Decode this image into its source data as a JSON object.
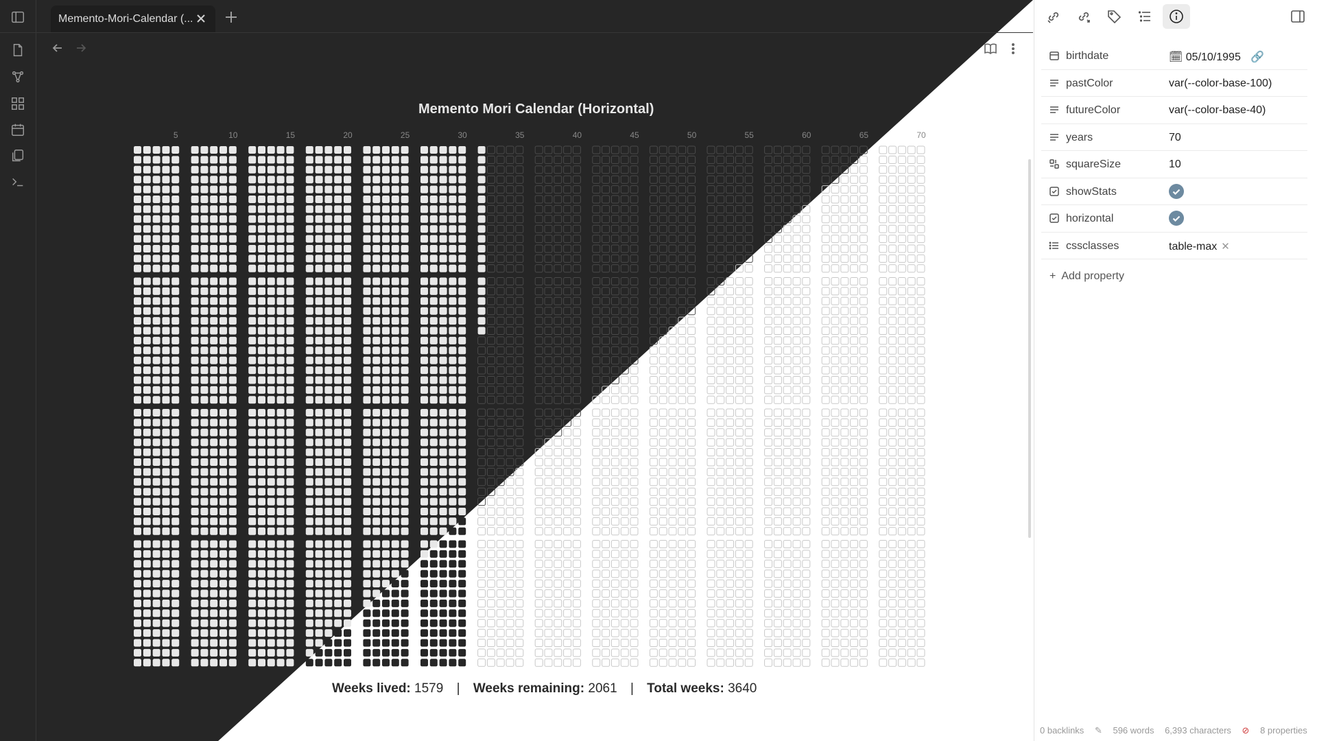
{
  "tab": {
    "title": "Memento-Mori-Calendar (..."
  },
  "calendar": {
    "title": "Memento Mori Calendar (Horizontal)",
    "year_labels": [
      "5",
      "10",
      "15",
      "20",
      "25",
      "30",
      "35",
      "40",
      "45",
      "50",
      "55",
      "60",
      "65",
      "70"
    ],
    "years": 70,
    "weeks_per_year": 52,
    "weeks_lived": 1579,
    "past_color": "#e8e8e8",
    "future_color": "#262626"
  },
  "stats": {
    "lived_label": "Weeks lived:",
    "lived_value": "1579",
    "remaining_label": "Weeks remaining:",
    "remaining_value": "2061",
    "total_label": "Total weeks:",
    "total_value": "3640",
    "separator": "|"
  },
  "properties": [
    {
      "icon": "calendar-icon",
      "key": "birthdate",
      "value": "05/10/1995",
      "type": "date"
    },
    {
      "icon": "text-lines-icon",
      "key": "pastColor",
      "value": "var(--color-base-100)",
      "type": "text"
    },
    {
      "icon": "text-lines-icon",
      "key": "futureColor",
      "value": "var(--color-base-40)",
      "type": "text"
    },
    {
      "icon": "text-lines-icon",
      "key": "years",
      "value": "70",
      "type": "text"
    },
    {
      "icon": "number-icon",
      "key": "squareSize",
      "value": "10",
      "type": "text"
    },
    {
      "icon": "checkbox-icon",
      "key": "showStats",
      "value": "",
      "type": "check"
    },
    {
      "icon": "checkbox-icon",
      "key": "horizontal",
      "value": "",
      "type": "check"
    },
    {
      "icon": "list-icon",
      "key": "cssclasses",
      "value": "table-max",
      "type": "chip"
    }
  ],
  "add_property": "Add property",
  "statusbar": {
    "backlinks": "0 backlinks",
    "words": "596 words",
    "characters": "6,393 characters",
    "properties": "8 properties"
  },
  "colors": {
    "dark": "#262626",
    "light": "#ffffff",
    "accent": "#6d8aa0"
  }
}
